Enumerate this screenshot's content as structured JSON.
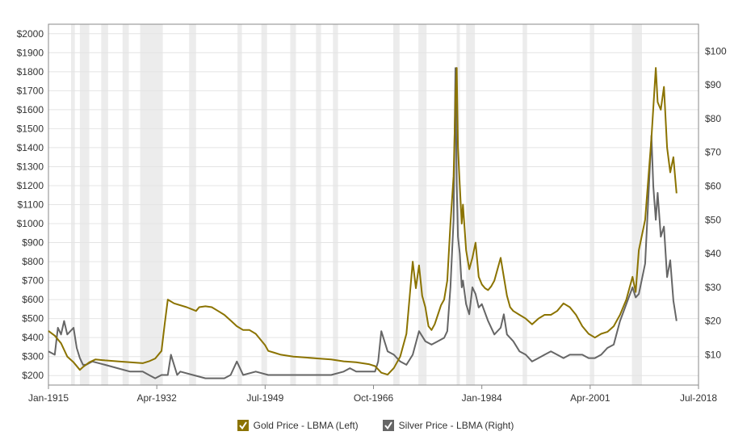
{
  "chart_data": {
    "type": "line",
    "title": "",
    "xlabel": "",
    "ylabel": "",
    "x_ticks": [
      "Jan-1915",
      "Apr-1932",
      "Jul-1949",
      "Oct-1966",
      "Jan-1984",
      "Apr-2001",
      "Jul-2018"
    ],
    "xlim": [
      1915.0,
      2018.5
    ],
    "left_axis": {
      "ylim": [
        150,
        2050
      ],
      "ticks": [
        200,
        300,
        400,
        500,
        600,
        700,
        800,
        900,
        1000,
        1100,
        1200,
        1300,
        1400,
        1500,
        1600,
        1700,
        1800,
        1900,
        2000
      ],
      "tick_labels": [
        "$200",
        "$300",
        "$400",
        "$500",
        "$600",
        "$700",
        "$800",
        "$900",
        "$1000",
        "$1100",
        "$1200",
        "$1300",
        "$1400",
        "$1500",
        "$1600",
        "$1700",
        "$1800",
        "$1900",
        "$2000"
      ]
    },
    "right_axis": {
      "ylim": [
        1.0,
        108.0
      ],
      "ticks": [
        10,
        20,
        30,
        40,
        50,
        60,
        70,
        80,
        90,
        100
      ],
      "tick_labels": [
        "$10",
        "$20",
        "$30",
        "$40",
        "$50",
        "$60",
        "$70",
        "$80",
        "$90",
        "$100"
      ]
    },
    "recessions": [
      [
        1918.6,
        1919.2
      ],
      [
        1920.0,
        1921.5
      ],
      [
        1923.4,
        1924.5
      ],
      [
        1926.8,
        1927.8
      ],
      [
        1929.6,
        1933.2
      ],
      [
        1937.4,
        1938.5
      ],
      [
        1945.1,
        1945.8
      ],
      [
        1948.9,
        1949.8
      ],
      [
        1953.5,
        1954.4
      ],
      [
        1957.6,
        1958.4
      ],
      [
        1960.3,
        1961.1
      ],
      [
        1969.9,
        1970.9
      ],
      [
        1973.9,
        1975.2
      ],
      [
        1980.0,
        1980.5
      ],
      [
        1981.5,
        1982.9
      ],
      [
        1990.5,
        1991.2
      ],
      [
        2001.2,
        2001.9
      ],
      [
        2007.9,
        2009.5
      ]
    ],
    "series": [
      {
        "name": "Gold Price - LBMA (Left)",
        "axis": "left",
        "color": "#8b7300",
        "x": [
          1915.0,
          1916.0,
          1917.0,
          1918.0,
          1919.0,
          1920.0,
          1920.5,
          1921.5,
          1922.5,
          1924.0,
          1926.0,
          1928.0,
          1930.0,
          1931.0,
          1932.0,
          1933.0,
          1933.5,
          1934.0,
          1935.0,
          1937.0,
          1938.5,
          1939.0,
          1940.0,
          1941.0,
          1942.0,
          1943.0,
          1944.0,
          1945.0,
          1946.0,
          1947.0,
          1948.0,
          1949.5,
          1950.0,
          1951.0,
          1952.0,
          1954.0,
          1956.0,
          1958.0,
          1960.0,
          1962.0,
          1964.0,
          1966.0,
          1967.0,
          1968.0,
          1969.0,
          1970.0,
          1971.0,
          1972.0,
          1972.5,
          1973.0,
          1973.5,
          1974.0,
          1974.5,
          1975.0,
          1975.5,
          1976.0,
          1976.5,
          1977.0,
          1977.5,
          1978.0,
          1978.5,
          1979.0,
          1979.5,
          1979.8,
          1980.0,
          1980.2,
          1980.5,
          1980.8,
          1981.0,
          1981.5,
          1982.0,
          1982.5,
          1983.0,
          1983.5,
          1984.0,
          1984.5,
          1985.0,
          1985.5,
          1986.0,
          1986.5,
          1987.0,
          1987.5,
          1988.0,
          1988.5,
          1989.0,
          1990.0,
          1991.0,
          1992.0,
          1993.0,
          1994.0,
          1995.0,
          1996.0,
          1997.0,
          1998.0,
          1999.0,
          2000.0,
          2001.0,
          2002.0,
          2003.0,
          2004.0,
          2005.0,
          2006.0,
          2007.0,
          2008.0,
          2008.5,
          2009.0,
          2010.0,
          2011.0,
          2011.7,
          2012.0,
          2012.5,
          2013.0,
          2013.5,
          2014.0,
          2014.5,
          2015.0
        ],
        "y": [
          435,
          410,
          370,
          300,
          270,
          230,
          245,
          270,
          285,
          280,
          275,
          270,
          265,
          275,
          290,
          330,
          470,
          600,
          580,
          560,
          540,
          560,
          565,
          560,
          540,
          520,
          490,
          460,
          440,
          440,
          420,
          360,
          330,
          320,
          310,
          300,
          295,
          290,
          285,
          275,
          270,
          260,
          250,
          215,
          205,
          240,
          300,
          420,
          610,
          800,
          660,
          780,
          620,
          560,
          460,
          440,
          470,
          520,
          570,
          600,
          700,
          1000,
          1250,
          1650,
          1820,
          1400,
          1200,
          1000,
          1100,
          860,
          760,
          820,
          900,
          720,
          680,
          660,
          650,
          670,
          700,
          760,
          820,
          720,
          620,
          560,
          540,
          520,
          500,
          470,
          500,
          520,
          520,
          540,
          580,
          560,
          520,
          460,
          420,
          400,
          420,
          430,
          460,
          520,
          600,
          720,
          640,
          860,
          1020,
          1450,
          1820,
          1640,
          1600,
          1720,
          1400,
          1270,
          1350,
          1160
        ]
      },
      {
        "name": "Silver Price - LBMA (Right)",
        "axis": "right",
        "color": "#666666",
        "x": [
          1915.0,
          1916.0,
          1916.5,
          1917.0,
          1917.5,
          1918.0,
          1919.0,
          1919.5,
          1920.0,
          1920.5,
          1921.0,
          1922.0,
          1924.0,
          1926.0,
          1928.0,
          1930.0,
          1931.0,
          1932.0,
          1933.0,
          1934.0,
          1934.5,
          1935.5,
          1936.0,
          1938.0,
          1940.0,
          1942.0,
          1943.0,
          1944.0,
          1945.0,
          1946.0,
          1948.0,
          1950.0,
          1952.0,
          1954.0,
          1956.0,
          1958.0,
          1960.0,
          1962.0,
          1963.0,
          1964.0,
          1966.0,
          1967.0,
          1967.5,
          1968.0,
          1969.0,
          1970.0,
          1971.0,
          1972.0,
          1973.0,
          1974.0,
          1975.0,
          1976.0,
          1977.0,
          1978.0,
          1978.5,
          1979.0,
          1979.5,
          1979.8,
          1980.0,
          1980.2,
          1980.5,
          1980.8,
          1981.0,
          1981.5,
          1982.0,
          1982.5,
          1983.0,
          1983.5,
          1984.0,
          1985.0,
          1986.0,
          1987.0,
          1987.5,
          1988.0,
          1989.0,
          1990.0,
          1991.0,
          1992.0,
          1993.0,
          1994.0,
          1995.0,
          1996.0,
          1997.0,
          1998.0,
          1999.0,
          2000.0,
          2001.0,
          2002.0,
          2003.0,
          2004.0,
          2005.0,
          2006.0,
          2007.0,
          2008.0,
          2008.5,
          2009.0,
          2010.0,
          2011.0,
          2011.3,
          2011.7,
          2012.0,
          2012.5,
          2013.0,
          2013.5,
          2014.0,
          2014.5,
          2015.0
        ],
        "y": [
          11,
          10,
          18,
          16,
          20,
          16,
          18,
          12,
          9,
          7,
          7,
          8,
          7,
          6,
          5,
          5,
          4,
          3,
          4,
          4,
          10,
          4,
          5,
          4,
          3,
          3,
          3,
          4,
          8,
          4,
          5,
          4,
          4,
          4,
          4,
          4,
          4,
          5,
          6,
          5,
          5,
          5,
          8,
          17,
          11,
          10,
          8,
          7,
          10,
          17,
          14,
          13,
          14,
          15,
          17,
          30,
          50,
          95,
          60,
          45,
          40,
          30,
          32,
          25,
          22,
          30,
          28,
          24,
          25,
          20,
          16,
          18,
          22,
          16,
          14,
          11,
          10,
          8,
          9,
          10,
          11,
          10,
          9,
          10,
          10,
          10,
          9,
          9,
          10,
          12,
          13,
          20,
          25,
          30,
          27,
          28,
          37,
          75,
          60,
          50,
          58,
          45,
          48,
          33,
          38,
          26,
          20
        ]
      }
    ],
    "legend_position": "bottom-center"
  }
}
